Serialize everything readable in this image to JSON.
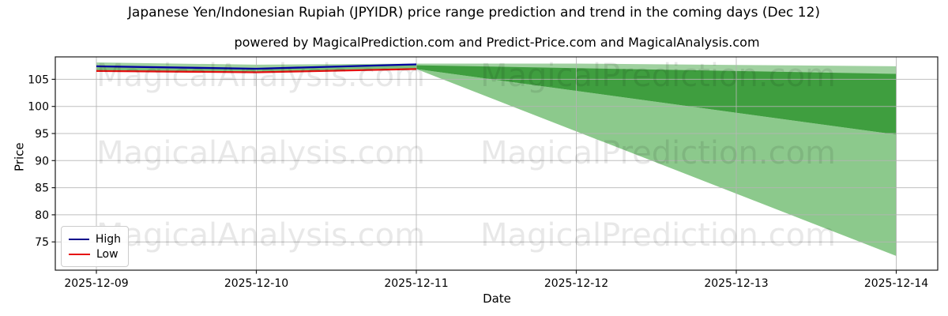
{
  "title": "Japanese Yen/Indonesian Rupiah (JPYIDR) price range prediction and trend in the coming days (Dec 12)",
  "subtitle": "powered by MagicalPrediction.com and Predict-Price.com and MagicalAnalysis.com",
  "watermarks": {
    "left": "MagicalAnalysis.com",
    "right": "MagicalPrediction.com"
  },
  "legend": {
    "items": [
      {
        "label": "High",
        "color": "#00008b"
      },
      {
        "label": "Low",
        "color": "#e51010"
      }
    ]
  },
  "axes": {
    "xlabel": "Date",
    "ylabel": "Price",
    "yticks": [
      75,
      80,
      85,
      90,
      95,
      100,
      105
    ],
    "xticks": [
      "2025-12-09",
      "2025-12-10",
      "2025-12-11",
      "2025-12-12",
      "2025-12-13",
      "2025-12-14"
    ]
  },
  "chart_data": {
    "type": "area",
    "title": "Japanese Yen/Indonesian Rupiah (JPYIDR) price range prediction and trend in the coming days (Dec 12)",
    "xlabel": "Date",
    "ylabel": "Price",
    "x": [
      "2025-12-09",
      "2025-12-10",
      "2025-12-11",
      "2025-12-12",
      "2025-12-13",
      "2025-12-14"
    ],
    "ylim": [
      69.8,
      109.1
    ],
    "grid": true,
    "legend_position": "lower left",
    "series": [
      {
        "name": "High",
        "type": "line",
        "color": "#0000a0",
        "x_index": [
          0,
          1,
          2
        ],
        "values": [
          107.4,
          106.95,
          107.75
        ]
      },
      {
        "name": "Low",
        "type": "line",
        "color": "#e51010",
        "x_index": [
          0,
          1,
          2
        ],
        "values": [
          106.55,
          106.3,
          106.9
        ]
      }
    ],
    "bands": {
      "flat_range_band": {
        "comment": "light green band spanning whole chart",
        "color": "#a0d1a0",
        "top": [
          108.1,
          107.7,
          107.9,
          107.9,
          107.65,
          107.4
        ],
        "bottom": [
          106.5,
          106.2,
          106.85,
          106.57,
          106.28,
          106.0
        ]
      },
      "history_high_low_fill": {
        "comment": "fill between High and Low lines, first 3 dates",
        "color": "#7cc07c",
        "x_index": [
          0,
          1,
          2
        ]
      },
      "prediction_wedge_dark": {
        "comment": "dark green prediction fan from Dec 11 to Dec 14",
        "color": "#3f9e3f",
        "start_x": "2025-12-11",
        "end_x": "2025-12-14",
        "start_top": 107.6,
        "start_bottom": 106.9,
        "end_top": 106.0,
        "end_bottom": 94.8
      },
      "prediction_wedge_light": {
        "comment": "light green prediction fan from Dec 11 to Dec 14",
        "color": "#8cc98c",
        "start_x": "2025-12-11",
        "end_x": "2025-12-14",
        "start_top": 106.9,
        "start_bottom": 106.9,
        "end_top": 94.8,
        "end_bottom": 72.4
      }
    },
    "grid_color": "#b4b4b4"
  }
}
